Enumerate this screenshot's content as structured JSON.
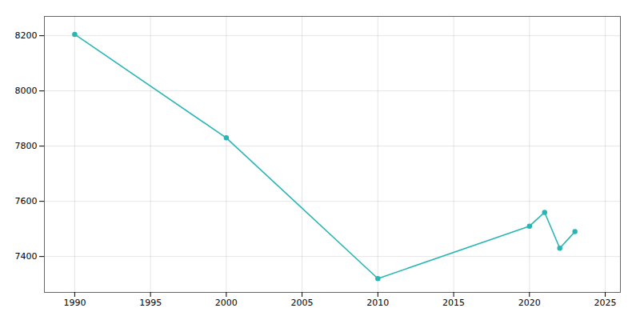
{
  "chart_data": {
    "type": "line",
    "x": [
      1990,
      2000,
      2010,
      2020,
      2021,
      2022,
      2023
    ],
    "values": [
      8205,
      7830,
      7320,
      7510,
      7560,
      7430,
      7490
    ],
    "color": "#2ab5b5",
    "marker": "circle",
    "xlim": [
      1988,
      2026
    ],
    "ylim": [
      7270,
      8270
    ],
    "xticks": [
      1990,
      1995,
      2000,
      2005,
      2010,
      2015,
      2020,
      2025
    ],
    "yticks": [
      7400,
      7600,
      7800,
      8000,
      8200
    ],
    "grid": true
  }
}
